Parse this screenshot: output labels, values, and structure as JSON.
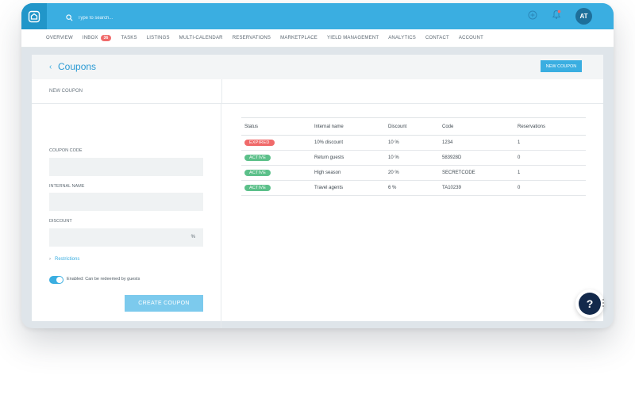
{
  "topbar": {
    "search_placeholder": "Type to search...",
    "avatar_initials": "AT",
    "accent": "#3aaee1"
  },
  "nav": {
    "items": [
      {
        "label": "OVERVIEW"
      },
      {
        "label": "INBOX",
        "badge": "36"
      },
      {
        "label": "TASKS"
      },
      {
        "label": "LISTINGS"
      },
      {
        "label": "MULTI-CALENDAR"
      },
      {
        "label": "RESERVATIONS"
      },
      {
        "label": "MARKETPLACE"
      },
      {
        "label": "YIELD MANAGEMENT"
      },
      {
        "label": "ANALYTICS"
      },
      {
        "label": "CONTACT"
      },
      {
        "label": "ACCOUNT"
      }
    ]
  },
  "page": {
    "title": "Coupons",
    "new_coupon_button": "NEW COUPON",
    "sub_title": "NEW COUPON"
  },
  "form": {
    "coupon_code_label": "COUPON CODE",
    "internal_name_label": "INTERNAL NAME",
    "discount_label": "DISCOUNT",
    "discount_unit": "%",
    "restrictions_label": "Restrictions",
    "enabled_label": "Enabled: Can be redeemed by guests",
    "create_button": "CREATE COUPON"
  },
  "table": {
    "headers": [
      "Status",
      "Internal name",
      "Discount",
      "Code",
      "Reservations"
    ],
    "rows": [
      {
        "status": "EXPIRED",
        "status_color": "#f06a6a",
        "name": "10% discount",
        "discount": "10 %",
        "code": "1234",
        "reservations": "1"
      },
      {
        "status": "ACTIVE",
        "status_color": "#5cc08a",
        "name": "Return guests",
        "discount": "10 %",
        "code": "583928D",
        "reservations": "0"
      },
      {
        "status": "ACTIVE",
        "status_color": "#5cc08a",
        "name": "High season",
        "discount": "20 %",
        "code": "SECRETCODE",
        "reservations": "1"
      },
      {
        "status": "ACTIVE",
        "status_color": "#5cc08a",
        "name": "Travel agents",
        "discount": "6 %",
        "code": "TA10239",
        "reservations": "0"
      }
    ]
  },
  "help": {
    "label": "?"
  }
}
